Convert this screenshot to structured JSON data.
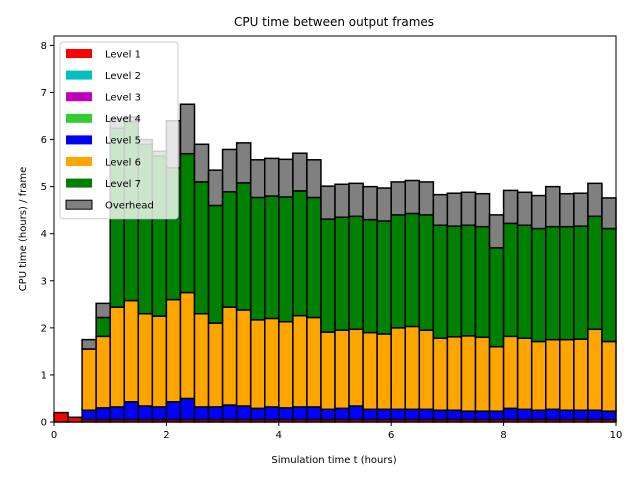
{
  "chart_data": {
    "type": "bar",
    "stacked": true,
    "title": "CPU time between output frames",
    "xlabel": "Simulation time t (hours)",
    "ylabel": "CPU time (hours) / frame",
    "xlim": [
      0,
      10
    ],
    "ylim": [
      0,
      8.2
    ],
    "xticks": [
      "0",
      "2",
      "4",
      "6",
      "8",
      "10"
    ],
    "yticks": [
      "0",
      "1",
      "2",
      "3",
      "4",
      "5",
      "6",
      "7",
      "8"
    ],
    "grid": false,
    "legend_position": "top-left",
    "bin_width": 0.25,
    "x": [
      0.125,
      0.375,
      0.625,
      0.875,
      1.125,
      1.375,
      1.625,
      1.875,
      2.125,
      2.375,
      2.625,
      2.875,
      3.125,
      3.375,
      3.625,
      3.875,
      4.125,
      4.375,
      4.625,
      4.875,
      5.125,
      5.375,
      5.625,
      5.875,
      6.125,
      6.375,
      6.625,
      6.875,
      7.125,
      7.375,
      7.625,
      7.875,
      8.125,
      8.375,
      8.625,
      8.875,
      9.125,
      9.375,
      9.625,
      9.875
    ],
    "series": [
      {
        "name": "Level 1",
        "color": "#ff0000",
        "values": [
          0.2,
          0.1,
          0.05,
          0.05,
          0.05,
          0.05,
          0.05,
          0.05,
          0.05,
          0.05,
          0.05,
          0.05,
          0.05,
          0.05,
          0.05,
          0.05,
          0.05,
          0.05,
          0.05,
          0.05,
          0.05,
          0.05,
          0.05,
          0.05,
          0.05,
          0.05,
          0.05,
          0.05,
          0.05,
          0.05,
          0.05,
          0.05,
          0.05,
          0.05,
          0.05,
          0.05,
          0.05,
          0.05,
          0.05,
          0.05
        ]
      },
      {
        "name": "Level 2",
        "color": "#00bfbf",
        "values": [
          0,
          0,
          0,
          0,
          0,
          0,
          0,
          0,
          0,
          0,
          0,
          0,
          0,
          0,
          0,
          0,
          0,
          0,
          0,
          0,
          0,
          0,
          0,
          0,
          0,
          0,
          0,
          0,
          0,
          0,
          0,
          0,
          0,
          0,
          0,
          0,
          0,
          0,
          0,
          0
        ]
      },
      {
        "name": "Level 3",
        "color": "#bf00bf",
        "values": [
          0,
          0,
          0,
          0,
          0,
          0,
          0,
          0,
          0,
          0,
          0,
          0,
          0,
          0,
          0,
          0,
          0,
          0,
          0,
          0,
          0,
          0,
          0,
          0,
          0,
          0,
          0,
          0,
          0,
          0,
          0,
          0,
          0,
          0,
          0,
          0,
          0,
          0,
          0,
          0
        ]
      },
      {
        "name": "Level 4",
        "color": "#32cd32",
        "values": [
          0,
          0,
          0,
          0,
          0,
          0,
          0,
          0,
          0,
          0,
          0,
          0,
          0,
          0,
          0,
          0,
          0,
          0,
          0,
          0,
          0,
          0,
          0,
          0,
          0,
          0,
          0,
          0,
          0,
          0,
          0,
          0,
          0,
          0,
          0,
          0,
          0,
          0,
          0,
          0
        ]
      },
      {
        "name": "Level 5",
        "color": "#0000ff",
        "values": [
          0,
          0,
          0.2,
          0.25,
          0.27,
          0.38,
          0.29,
          0.27,
          0.38,
          0.45,
          0.27,
          0.27,
          0.31,
          0.29,
          0.24,
          0.27,
          0.25,
          0.27,
          0.27,
          0.22,
          0.24,
          0.29,
          0.22,
          0.22,
          0.22,
          0.22,
          0.22,
          0.2,
          0.2,
          0.18,
          0.18,
          0.18,
          0.24,
          0.22,
          0.2,
          0.22,
          0.2,
          0.2,
          0.2,
          0.18
        ]
      },
      {
        "name": "Level 6",
        "color": "#ffa500",
        "values": [
          0,
          0,
          1.3,
          1.52,
          2.12,
          2.15,
          1.96,
          1.93,
          2.17,
          2.25,
          1.98,
          1.78,
          2.08,
          2.04,
          1.88,
          1.88,
          1.83,
          1.94,
          1.9,
          1.64,
          1.66,
          1.63,
          1.63,
          1.6,
          1.73,
          1.76,
          1.68,
          1.53,
          1.56,
          1.6,
          1.57,
          1.37,
          1.53,
          1.51,
          1.46,
          1.48,
          1.5,
          1.51,
          1.72,
          1.48
        ]
      },
      {
        "name": "Level 7",
        "color": "#008000",
        "values": [
          0,
          0,
          0,
          0.4,
          3.8,
          3.8,
          3.6,
          3.4,
          2.8,
          2.95,
          2.8,
          2.5,
          2.45,
          2.7,
          2.6,
          2.6,
          2.65,
          2.65,
          2.55,
          2.4,
          2.4,
          2.4,
          2.4,
          2.4,
          2.4,
          2.4,
          2.45,
          2.4,
          2.35,
          2.35,
          2.35,
          2.1,
          2.4,
          2.4,
          2.4,
          2.4,
          2.4,
          2.4,
          2.4,
          2.4
        ]
      },
      {
        "name": "Overhead",
        "color": "#808080",
        "values": [
          0,
          0,
          0.2,
          0.3,
          0.2,
          0.1,
          0.1,
          0.1,
          1.0,
          1.05,
          0.8,
          0.75,
          0.9,
          0.85,
          0.8,
          0.8,
          0.8,
          0.8,
          0.8,
          0.7,
          0.7,
          0.7,
          0.7,
          0.7,
          0.7,
          0.7,
          0.7,
          0.65,
          0.7,
          0.7,
          0.7,
          0.7,
          0.7,
          0.7,
          0.7,
          0.85,
          0.7,
          0.7,
          0.7,
          0.65
        ]
      }
    ]
  }
}
